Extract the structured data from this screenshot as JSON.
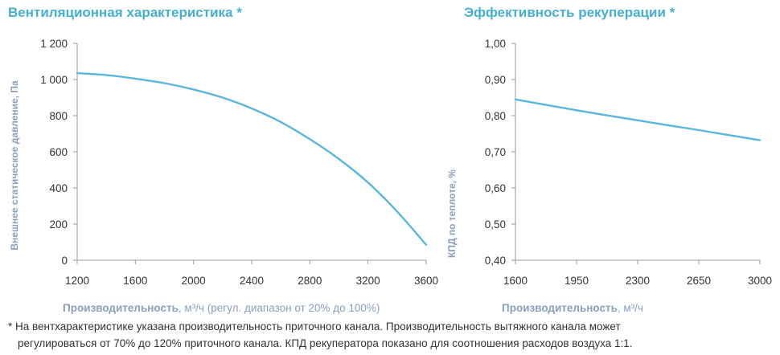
{
  "charts": {
    "left": {
      "title": "Вентиляционная характеристика *",
      "xlabel_bold": "Производительность",
      "xlabel_unit": ", м³/ч",
      "xlabel_note": " (регул. диапазон от 20% до 100%)"
    },
    "right": {
      "title": "Эффективность рекуперации *",
      "xlabel_bold": "Производительность",
      "xlabel_unit": ", м³/ч"
    }
  },
  "footnote": {
    "line1": "* На вентхарактеристике указана производительность приточного канала. Производительность вытяжного канала может",
    "line2": "регулироваться от 70% до 120% приточного канала. КПД рекуператора показано для соотношения расходов воздуха 1:1."
  },
  "colors": {
    "series": "#5bb6dd",
    "title": "#45b0d3",
    "axis_label": "#8a9fbc"
  },
  "chart_data": [
    {
      "type": "line",
      "title": "Вентиляционная характеристика *",
      "xlabel": "Производительность, м³/ч (регул. диапазон от 20% до 100%)",
      "ylabel": "Внешнее статическое давление, Па",
      "xlim": [
        1200,
        3600
      ],
      "ylim": [
        0,
        1200
      ],
      "xticks": [
        1200,
        1600,
        2000,
        2400,
        2800,
        3200,
        3600
      ],
      "yticks": [
        0,
        200,
        400,
        600,
        800,
        1000,
        1200
      ],
      "ytick_labels": [
        "0",
        "200",
        "400",
        "600",
        "800",
        "1 000",
        "1 200"
      ],
      "grid": false,
      "series": [
        {
          "x": [
            1200,
            1400,
            1600,
            1800,
            2000,
            2200,
            2400,
            2600,
            2800,
            3000,
            3200,
            3400,
            3600
          ],
          "y": [
            1035,
            1025,
            1005,
            980,
            945,
            900,
            840,
            765,
            670,
            560,
            430,
            270,
            85
          ]
        }
      ]
    },
    {
      "type": "line",
      "title": "Эффективность рекуперации *",
      "xlabel": "Производительность, м³/ч",
      "ylabel": "КПД по теплоте, %",
      "xlim": [
        1600,
        3000
      ],
      "ylim": [
        0.4,
        1.0
      ],
      "xticks": [
        1600,
        1950,
        2300,
        2650,
        3000
      ],
      "yticks": [
        0.4,
        0.5,
        0.6,
        0.7,
        0.8,
        0.9,
        1.0
      ],
      "ytick_labels": [
        "0,40",
        "0,50",
        "0,60",
        "0,70",
        "0,80",
        "0,90",
        "1,00"
      ],
      "grid": false,
      "series": [
        {
          "x": [
            1600,
            1950,
            2300,
            2650,
            3000
          ],
          "y": [
            0.845,
            0.815,
            0.787,
            0.76,
            0.732
          ]
        }
      ]
    }
  ]
}
